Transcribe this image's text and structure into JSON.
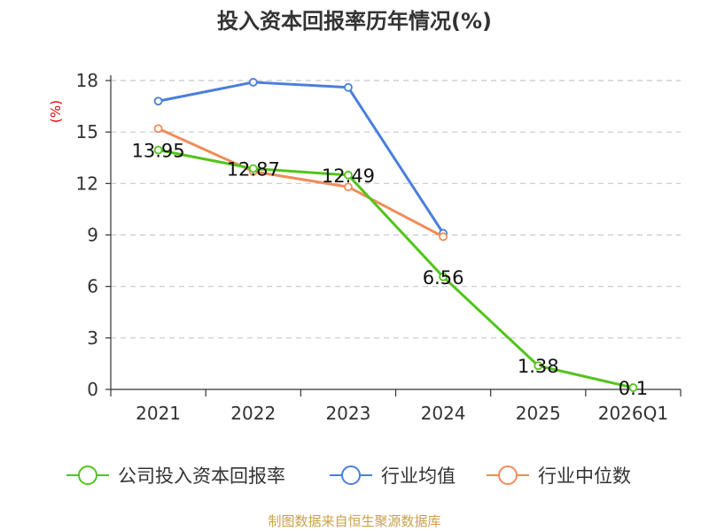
{
  "chart_data": {
    "type": "line",
    "title": "投入资本回报率历年情况(%)",
    "unit": "(%)",
    "categories": [
      "2021",
      "2022",
      "2023",
      "2024",
      "2025",
      "2026Q1"
    ],
    "ylim": [
      0,
      18
    ],
    "yticks": [
      0,
      3,
      6,
      9,
      12,
      15,
      18
    ],
    "grid": true,
    "legend_position": "bottom",
    "series": [
      {
        "name": "公司投入资本回报率",
        "color": "#52c41a",
        "values": [
          13.95,
          12.87,
          12.49,
          6.56,
          1.38,
          0.1
        ],
        "labels": [
          "13.95",
          "12.87",
          "12.49",
          "6.56",
          "1.38",
          "0.1"
        ]
      },
      {
        "name": "行业均值",
        "color": "#4a7fdb",
        "values": [
          16.8,
          17.9,
          17.6,
          9.1,
          null,
          null
        ]
      },
      {
        "name": "行业中位数",
        "color": "#f08c5a",
        "values": [
          15.2,
          12.7,
          11.8,
          8.9,
          null,
          null
        ]
      }
    ],
    "source": "制图数据来自恒生聚源数据库"
  }
}
